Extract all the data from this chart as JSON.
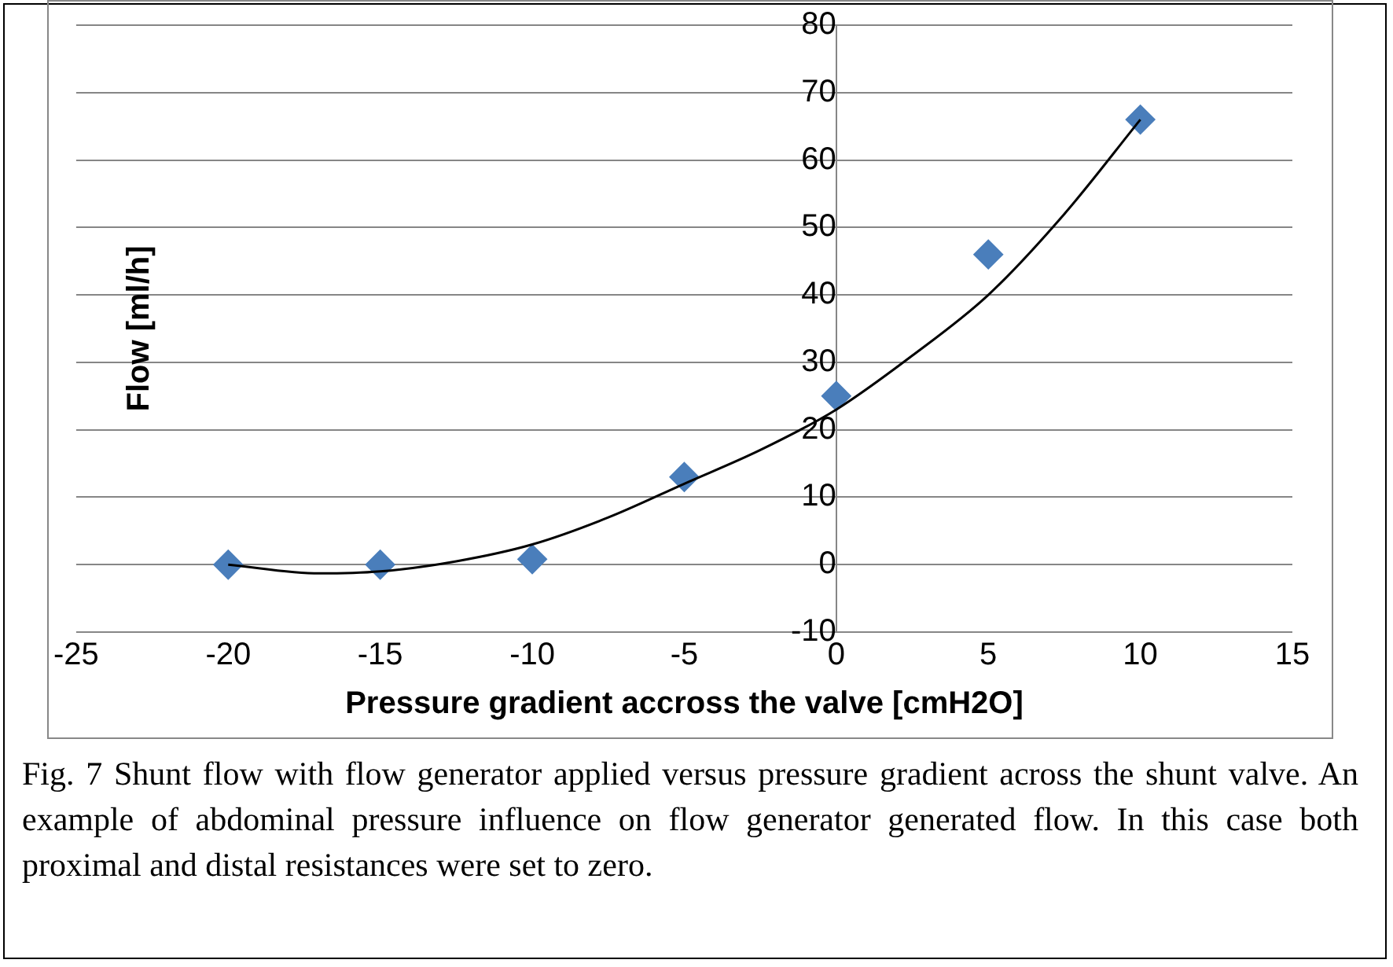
{
  "chart_data": {
    "type": "scatter",
    "xlabel": "Pressure gradient accross the valve [cmH2O]",
    "ylabel": "Flow [ml/h]",
    "xlim": [
      -25,
      15
    ],
    "xticks": [
      -25,
      -20,
      -15,
      -10,
      -5,
      0,
      5,
      10,
      15
    ],
    "ylim": [
      -10,
      80
    ],
    "yticks": [
      -10,
      0,
      10,
      20,
      30,
      40,
      50,
      60,
      70,
      80
    ],
    "grid": "y",
    "legend": false,
    "marker": "diamond",
    "series": [
      {
        "type": "scatter",
        "color": "#4a7ebb",
        "x": [
          -20,
          -15,
          -10,
          -5,
          0,
          5,
          10
        ],
        "values": [
          0,
          0,
          0.8,
          13,
          25,
          46,
          66
        ]
      },
      {
        "type": "line",
        "color": "#000000",
        "marker": "none",
        "x": [
          -20,
          -17,
          -15,
          -12.5,
          -10,
          -7.5,
          -5,
          -2.5,
          0,
          2.5,
          5,
          7.5,
          10
        ],
        "values": [
          0,
          -1.3,
          -1,
          0.5,
          3,
          7,
          12,
          17,
          23,
          31,
          40,
          52,
          66
        ]
      }
    ],
    "annotations": [
      "Fig. 7 Shunt flow with flow generator applied versus pressure gradient across the shunt valve. An example of abdominal pressure influence on flow generator generated flow. In this case both proximal and distal resistances were set to zero."
    ]
  }
}
